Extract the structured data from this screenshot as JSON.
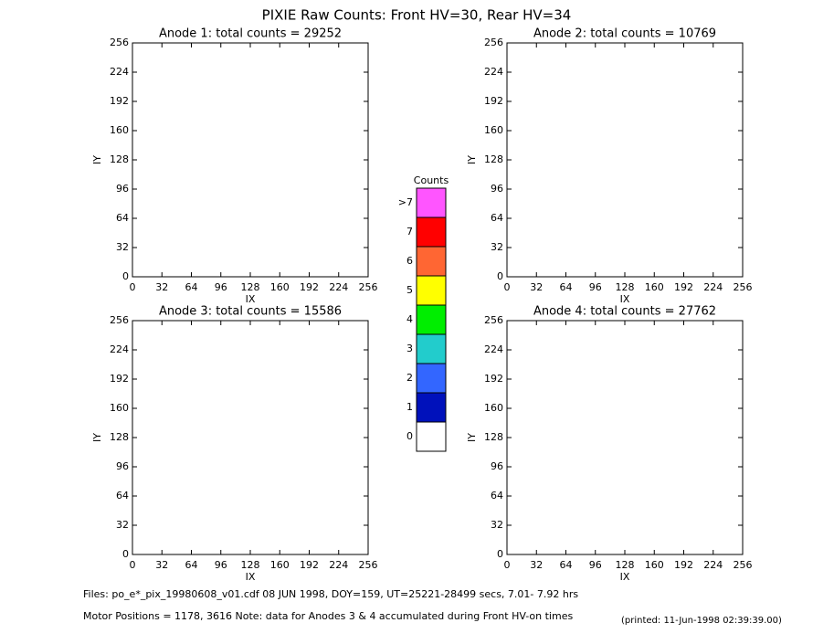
{
  "title": "PIXIE Raw Counts:  Front HV=30, Rear HV=34",
  "chart_data": [
    {
      "type": "heatmap",
      "title": "Anode 1: total counts = 29252",
      "xlabel": "IX",
      "ylabel": "IY",
      "xlim": [
        0,
        256
      ],
      "ylim": [
        0,
        256
      ],
      "xticks": [
        0,
        32,
        64,
        96,
        128,
        160,
        192,
        224,
        256
      ],
      "yticks": [
        0,
        32,
        64,
        96,
        128,
        160,
        192,
        224,
        256
      ]
    },
    {
      "type": "heatmap",
      "title": "Anode 2: total counts = 10769",
      "xlabel": "IX",
      "ylabel": "IY",
      "xlim": [
        0,
        256
      ],
      "ylim": [
        0,
        256
      ],
      "xticks": [
        0,
        32,
        64,
        96,
        128,
        160,
        192,
        224,
        256
      ],
      "yticks": [
        0,
        32,
        64,
        96,
        128,
        160,
        192,
        224,
        256
      ]
    },
    {
      "type": "heatmap",
      "title": "Anode 3: total counts = 15586",
      "xlabel": "IX",
      "ylabel": "IY",
      "xlim": [
        0,
        256
      ],
      "ylim": [
        0,
        256
      ],
      "xticks": [
        0,
        32,
        64,
        96,
        128,
        160,
        192,
        224,
        256
      ],
      "yticks": [
        0,
        32,
        64,
        96,
        128,
        160,
        192,
        224,
        256
      ]
    },
    {
      "type": "heatmap",
      "title": "Anode 4: total counts = 27762",
      "xlabel": "IX",
      "ylabel": "IY",
      "xlim": [
        0,
        256
      ],
      "ylim": [
        0,
        256
      ],
      "xticks": [
        0,
        32,
        64,
        96,
        128,
        160,
        192,
        224,
        256
      ],
      "yticks": [
        0,
        32,
        64,
        96,
        128,
        160,
        192,
        224,
        256
      ]
    }
  ],
  "colorbar": {
    "title": "Counts",
    "levels": [
      "0",
      "1",
      "2",
      "3",
      "4",
      "5",
      "6",
      "7",
      ">7"
    ],
    "colors": [
      "#ffffff",
      "#0011bb",
      "#3366ff",
      "#22cccc",
      "#00ee00",
      "#ffff00",
      "#ff6633",
      "#ff0000",
      "#ff55ff"
    ]
  },
  "footer": {
    "files": "Files: po_e*_pix_19980608_v01.cdf    08 JUN 1998, DOY=159, UT=25221-28499 secs,  7.01- 7.92 hrs",
    "motor": "Motor Positions = 1178, 3616   Note: data for Anodes 3 & 4 accumulated during Front HV-on times",
    "printed": "(printed: 11-Jun-1998 02:39:39.00)"
  }
}
